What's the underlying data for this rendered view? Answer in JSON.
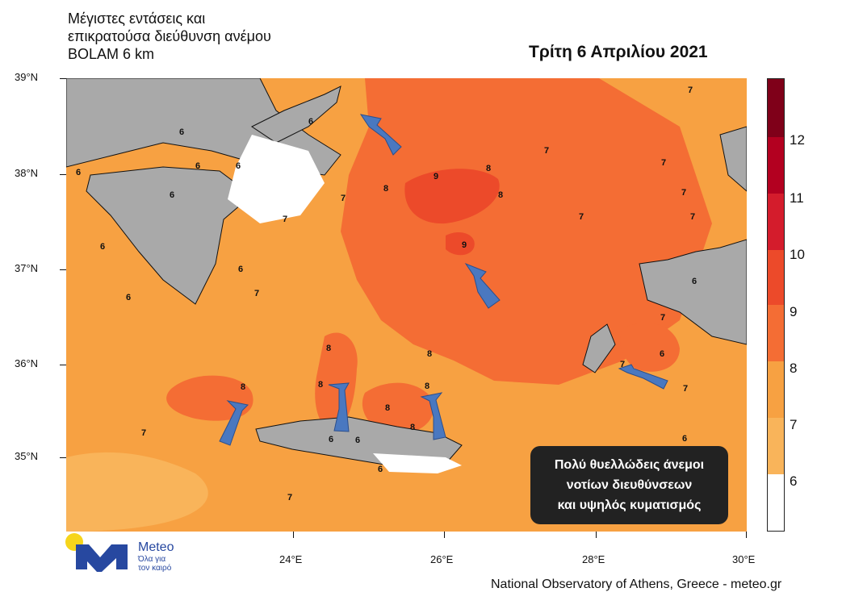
{
  "title_lines": [
    "Μέγιστες εντάσεις και",
    "επικρατούσα διεύθυνση ανέμου",
    "BOLAM 6 km"
  ],
  "date_title": "Τρίτη 6 Απριλίου 2021",
  "latitude_labels": [
    "39°N",
    "38°N",
    "37°N",
    "36°N",
    "35°N"
  ],
  "longitude_labels": [
    "24°E",
    "26°E",
    "28°E",
    "30°E"
  ],
  "colorbar": {
    "labels": [
      "12",
      "11",
      "10",
      "9",
      "8",
      "7",
      "6"
    ],
    "colors": [
      "#7f0019",
      "#b30020",
      "#d41c2c",
      "#ec4a2a",
      "#f46d34",
      "#f7a142",
      "#ffffff"
    ]
  },
  "contour_labels": [
    "7",
    "6",
    "6",
    "6",
    "6",
    "6",
    "6",
    "6",
    "6",
    "6",
    "6",
    "6",
    "6",
    "6",
    "6",
    "6",
    "7",
    "7",
    "7",
    "7",
    "7",
    "7",
    "7",
    "7",
    "7",
    "7",
    "7",
    "7",
    "7",
    "8",
    "8",
    "8",
    "8",
    "8",
    "8",
    "8",
    "8",
    "8",
    "8",
    "9",
    "9"
  ],
  "wind_arrows": {
    "count": 6,
    "direction": "toward north / north-west",
    "color": "#4a78c0"
  },
  "warning": [
    "Πολύ θυελλώδεις άνεμοι",
    "νοτίων διευθύνσεων",
    "και υψηλός κυματισμός"
  ],
  "logo": {
    "name": "Meteo",
    "tagline": [
      "Όλα για",
      "τον καιρό"
    ],
    "brand_color": "#2748a0",
    "sun_color": "#f6d51b"
  },
  "credit": "National Observatory of Athens, Greece - meteo.gr"
}
